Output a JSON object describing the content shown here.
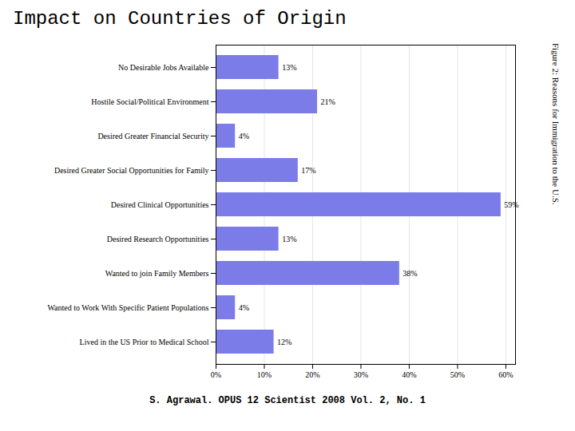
{
  "chart_data": {
    "type": "bar",
    "orientation": "horizontal",
    "title": "Impact on Countries of Origin",
    "categories": [
      "No Desirable Jobs Available",
      "Hostile Social/Political Environment",
      "Desired Greater Financial Security",
      "Desired Greater Social Opportunities for Family",
      "Desired Clinical Opportunities",
      "Desired Research Opportunities",
      "Wanted to join Family Members",
      "Wanted to Work With Specific Patient Populations",
      "Lived in the US Prior to Medical School"
    ],
    "values": [
      13,
      21,
      4,
      17,
      59,
      13,
      38,
      4,
      12
    ],
    "value_labels": [
      "13%",
      "21%",
      "4%",
      "17%",
      "59%",
      "13%",
      "38%",
      "4%",
      "12%"
    ],
    "data_labels": true,
    "color": "#7b7ce8",
    "xlim": [
      0,
      62
    ],
    "xticks": [
      {
        "value": 0,
        "label": "0%"
      },
      {
        "value": 10,
        "label": "10%"
      },
      {
        "value": 20,
        "label": "20%"
      },
      {
        "value": 30,
        "label": "30%"
      },
      {
        "value": 40,
        "label": "40%"
      },
      {
        "value": 50,
        "label": "50%"
      },
      {
        "value": 60,
        "label": "60%"
      }
    ],
    "grid": true,
    "annotations": [
      "Figure 2: Reasons for Immigration to the U.S.",
      "S. Agrawal. OPUS 12 Scientist 2008 Vol. 2, No. 1"
    ]
  }
}
